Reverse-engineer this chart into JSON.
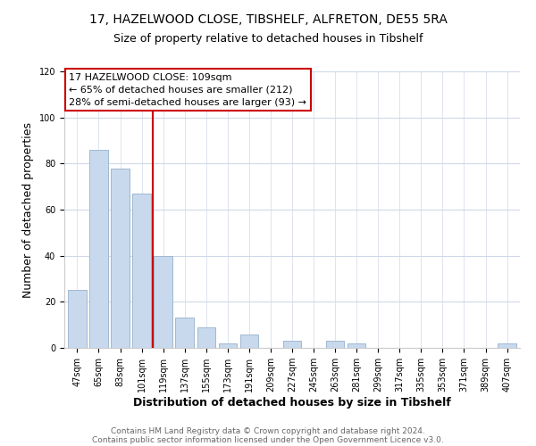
{
  "title_line1": "17, HAZELWOOD CLOSE, TIBSHELF, ALFRETON, DE55 5RA",
  "title_line2": "Size of property relative to detached houses in Tibshelf",
  "xlabel": "Distribution of detached houses by size in Tibshelf",
  "ylabel": "Number of detached properties",
  "bar_labels": [
    "47sqm",
    "65sqm",
    "83sqm",
    "101sqm",
    "119sqm",
    "137sqm",
    "155sqm",
    "173sqm",
    "191sqm",
    "209sqm",
    "227sqm",
    "245sqm",
    "263sqm",
    "281sqm",
    "299sqm",
    "317sqm",
    "335sqm",
    "353sqm",
    "371sqm",
    "389sqm",
    "407sqm"
  ],
  "bar_values": [
    25,
    86,
    78,
    67,
    40,
    13,
    9,
    2,
    6,
    0,
    3,
    0,
    3,
    2,
    0,
    0,
    0,
    0,
    0,
    0,
    2
  ],
  "bar_color": "#c8d9ed",
  "bar_edge_color": "#a0b8d0",
  "annotation_line1": "17 HAZELWOOD CLOSE: 109sqm",
  "annotation_line2": "← 65% of detached houses are smaller (212)",
  "annotation_line3": "28% of semi-detached houses are larger (93) →",
  "vline_x": 3.5,
  "vline_color": "#cc0000",
  "ylim": [
    0,
    120
  ],
  "yticks": [
    0,
    20,
    40,
    60,
    80,
    100,
    120
  ],
  "footer_line1": "Contains HM Land Registry data © Crown copyright and database right 2024.",
  "footer_line2": "Contains public sector information licensed under the Open Government Licence v3.0.",
  "background_color": "#ffffff",
  "grid_color": "#d0d8e8",
  "title_fontsize": 10,
  "subtitle_fontsize": 9,
  "axis_label_fontsize": 9,
  "tick_fontsize": 7,
  "annotation_fontsize": 8,
  "footer_fontsize": 6.5
}
